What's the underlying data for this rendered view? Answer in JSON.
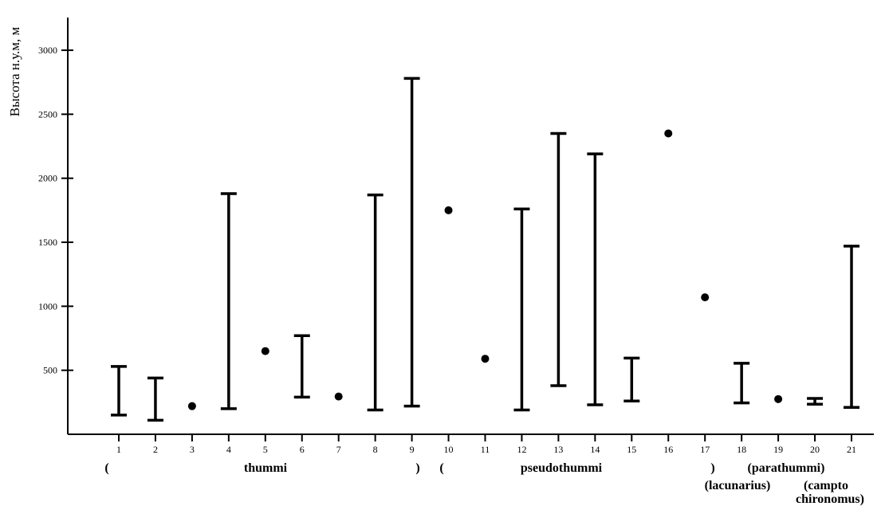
{
  "chart_data": {
    "type": "range",
    "ylabel": "Высота н.у.м, м",
    "xlabel": "",
    "ylim": [
      0,
      3250
    ],
    "yticks": [
      500,
      1000,
      1500,
      2000,
      2500,
      3000
    ],
    "categories": [
      "1",
      "2",
      "3",
      "4",
      "5",
      "6",
      "7",
      "8",
      "9",
      "10",
      "11",
      "12",
      "13",
      "14",
      "15",
      "16",
      "17",
      "18",
      "19",
      "20",
      "21"
    ],
    "ranges": [
      {
        "x": "1",
        "low": 150,
        "high": 530
      },
      {
        "x": "2",
        "low": 110,
        "high": 440
      },
      {
        "x": "3",
        "value": 220
      },
      {
        "x": "4",
        "low": 200,
        "high": 1880
      },
      {
        "x": "5",
        "value": 650
      },
      {
        "x": "6",
        "low": 290,
        "high": 770
      },
      {
        "x": "7",
        "value": 295
      },
      {
        "x": "8",
        "low": 190,
        "high": 1870
      },
      {
        "x": "9",
        "low": 220,
        "high": 2780
      },
      {
        "x": "10",
        "value": 1750
      },
      {
        "x": "11",
        "value": 590
      },
      {
        "x": "12",
        "low": 190,
        "high": 1760
      },
      {
        "x": "13",
        "low": 380,
        "high": 2350
      },
      {
        "x": "14",
        "low": 230,
        "high": 2190
      },
      {
        "x": "15",
        "low": 260,
        "high": 595
      },
      {
        "x": "16",
        "value": 2350
      },
      {
        "x": "17",
        "value": 1070
      },
      {
        "x": "18",
        "low": 245,
        "high": 555
      },
      {
        "x": "19",
        "value": 275
      },
      {
        "x": "20",
        "low": 235,
        "high": 280
      },
      {
        "x": "21",
        "low": 210,
        "high": 1470
      }
    ],
    "group_labels": [
      {
        "text": "(",
        "row": 1
      },
      {
        "text": "thummi",
        "row": 1
      },
      {
        "text": ")",
        "row": 1
      },
      {
        "text": "(",
        "row": 1
      },
      {
        "text": "pseudothummi",
        "row": 1
      },
      {
        "text": ")",
        "row": 1
      },
      {
        "text": "(parathummi)",
        "row": 1
      },
      {
        "text": "(lacunarius)",
        "row": 2
      },
      {
        "text": "(campto",
        "row": 2
      },
      {
        "text": "chironomus)",
        "row": 3
      }
    ]
  }
}
